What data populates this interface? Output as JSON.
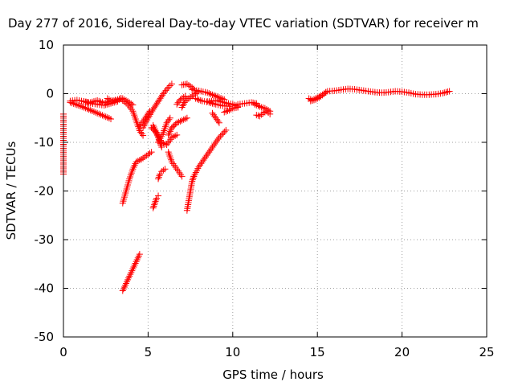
{
  "chart_data": {
    "type": "scatter",
    "title": "Day 277 of 2016, Sidereal Day-to-day VTEC variation (SDTVAR) for receiver m",
    "xlabel": "GPS time / hours",
    "ylabel": "SDTVAR / TECUs",
    "xlim": [
      0,
      25
    ],
    "ylim": [
      -50,
      10
    ],
    "xticks": [
      0,
      5,
      10,
      15,
      20,
      25
    ],
    "yticks": [
      10,
      0,
      -10,
      -20,
      -30,
      -40,
      -50
    ],
    "grid": true,
    "marker": "+",
    "color": "#ff0000",
    "tracks": [
      {
        "x": [
          0.4,
          0.8,
          1.2,
          1.6,
          2.0,
          2.4,
          2.8,
          3.2,
          3.4
        ],
        "y": [
          -1.5,
          -1.3,
          -1.6,
          -1.8,
          -1.4,
          -1.9,
          -1.5,
          -1.2,
          -0.9
        ]
      },
      {
        "x": [
          0.4,
          0.8,
          1.2,
          1.6,
          2.0,
          2.4,
          2.8
        ],
        "y": [
          -1.8,
          -2.3,
          -2.8,
          -3.4,
          -4.0,
          -4.6,
          -5.2
        ]
      },
      {
        "x": [
          1.2,
          1.6,
          2.0,
          2.4,
          2.8,
          3.2
        ],
        "y": [
          -1.6,
          -2.0,
          -2.2,
          -2.4,
          -2.0,
          -1.6
        ]
      },
      {
        "x": [
          2.6,
          2.9,
          3.2,
          3.5,
          3.8,
          4.1
        ],
        "y": [
          -1.0,
          -1.6,
          -1.3,
          -1.0,
          -1.6,
          -2.3
        ]
      },
      {
        "x": [
          3.5,
          3.8,
          4.1,
          4.3,
          4.5,
          4.7
        ],
        "y": [
          -1.4,
          -2.2,
          -3.6,
          -5.6,
          -7.6,
          -8.6
        ]
      },
      {
        "x": [
          4.7,
          5.0,
          5.3,
          5.6,
          5.9,
          6.2,
          6.4
        ],
        "y": [
          -7.0,
          -5.0,
          -3.2,
          -1.6,
          0.0,
          1.3,
          2.0
        ]
      },
      {
        "x": [
          4.5,
          4.8,
          5.1
        ],
        "y": [
          -6.6,
          -5.2,
          -3.6
        ]
      },
      {
        "x": [
          5.2,
          5.5,
          5.8,
          6.1,
          6.4,
          6.7
        ],
        "y": [
          -7.0,
          -8.0,
          -10.0,
          -10.5,
          -9.0,
          -8.5
        ]
      },
      {
        "x": [
          5.6,
          5.9,
          6.1,
          6.3
        ],
        "y": [
          -10.0,
          -8.0,
          -6.0,
          -5.0
        ]
      },
      {
        "x": [
          5.3,
          5.6,
          5.8
        ],
        "y": [
          -6.5,
          -9.0,
          -11.0
        ]
      },
      {
        "x": [
          6.2,
          6.4,
          6.7,
          7.0,
          7.3
        ],
        "y": [
          -8.5,
          -7.0,
          -6.0,
          -5.5,
          -5.0
        ]
      },
      {
        "x": [
          6.2,
          6.4,
          6.7,
          7.0
        ],
        "y": [
          -12.0,
          -14.0,
          -15.5,
          -17.0
        ]
      },
      {
        "x": [
          6.7,
          6.9,
          7.2
        ],
        "y": [
          -2.2,
          -1.2,
          -0.5
        ]
      },
      {
        "x": [
          7.0,
          7.2,
          7.6,
          8.0
        ],
        "y": [
          -2.8,
          -1.5,
          -0.5,
          0.5
        ]
      },
      {
        "x": [
          7.0,
          7.3,
          7.5,
          7.7
        ],
        "y": [
          1.8,
          2.0,
          1.5,
          1.0
        ]
      },
      {
        "x": [
          7.6,
          8.0,
          8.5,
          9.0,
          9.5
        ],
        "y": [
          0.8,
          0.6,
          0.2,
          -0.5,
          -1.2
        ]
      },
      {
        "x": [
          7.8,
          8.2,
          8.6,
          9.0,
          9.4,
          9.8
        ],
        "y": [
          -1.0,
          -1.5,
          -1.8,
          -2.2,
          -2.5,
          -2.6
        ]
      },
      {
        "x": [
          8.5,
          9.0,
          9.5,
          10.0,
          10.3
        ],
        "y": [
          -1.6,
          -1.4,
          -1.8,
          -2.2,
          -2.6
        ]
      },
      {
        "x": [
          9.5,
          9.8,
          10.0,
          10.3
        ],
        "y": [
          -3.8,
          -3.4,
          -3.0,
          -2.8
        ]
      },
      {
        "x": [
          8.8,
          9.0,
          9.2
        ],
        "y": [
          -4.0,
          -5.0,
          -6.0
        ]
      },
      {
        "x": [
          10.3,
          10.7,
          11.1,
          11.4
        ],
        "y": [
          -2.2,
          -2.0,
          -1.8,
          -2.0
        ]
      },
      {
        "x": [
          11.4,
          11.6,
          11.8,
          12.0,
          12.2
        ],
        "y": [
          -4.4,
          -4.6,
          -4.0,
          -3.6,
          -4.2
        ]
      },
      {
        "x": [
          11.3,
          11.5,
          11.7,
          11.9,
          12.2
        ],
        "y": [
          -2.2,
          -2.5,
          -2.8,
          -3.0,
          -3.6
        ]
      },
      {
        "x": [
          7.3,
          7.4,
          7.5,
          7.6,
          7.7
        ],
        "y": [
          -24.0,
          -22.0,
          -20.0,
          -18.0,
          -17.0
        ]
      },
      {
        "x": [
          7.7,
          8.0,
          8.4,
          8.8,
          9.2,
          9.6
        ],
        "y": [
          -17.0,
          -15.0,
          -13.0,
          -11.0,
          -9.0,
          -7.5
        ]
      },
      {
        "x": [
          3.5,
          3.7,
          3.9,
          4.1,
          4.3,
          4.6
        ],
        "y": [
          -22.5,
          -20.0,
          -17.5,
          -15.5,
          -14.0,
          -13.5
        ]
      },
      {
        "x": [
          4.6,
          4.8,
          5.0,
          5.2
        ],
        "y": [
          -13.5,
          -13.0,
          -12.5,
          -12.0
        ]
      },
      {
        "x": [
          5.3,
          5.4,
          5.5,
          5.6
        ],
        "y": [
          -23.5,
          -22.5,
          -21.5,
          -21.0
        ]
      },
      {
        "x": [
          5.6,
          5.7,
          5.8,
          6.0
        ],
        "y": [
          -17.5,
          -16.5,
          -16.0,
          -15.5
        ]
      },
      {
        "x": [
          3.5,
          3.7,
          3.9,
          4.1,
          4.3,
          4.5
        ],
        "y": [
          -40.5,
          -39.0,
          -37.5,
          -36.0,
          -34.5,
          -33.0
        ]
      },
      {
        "x": [
          14.5,
          14.7,
          15.0,
          15.3,
          15.6,
          16.0,
          16.4,
          16.8,
          17.2,
          17.6,
          18.0,
          18.4,
          18.8,
          19.2,
          19.6,
          20.0,
          20.4,
          20.8,
          21.2,
          21.6,
          22.0,
          22.4,
          22.8
        ],
        "y": [
          -1.0,
          -1.3,
          -0.8,
          -0.2,
          0.5,
          0.6,
          0.8,
          1.0,
          0.9,
          0.7,
          0.5,
          0.3,
          0.2,
          0.3,
          0.5,
          0.4,
          0.2,
          -0.1,
          -0.2,
          -0.2,
          -0.1,
          0.1,
          0.5
        ]
      },
      {
        "x": [
          14.6,
          14.9,
          15.2,
          15.5
        ],
        "y": [
          -1.5,
          -1.2,
          -0.6,
          0.3
        ]
      },
      {
        "x": [
          0.0,
          0.0,
          0.0
        ],
        "y": [
          -4.2,
          -10.0,
          -16.5
        ]
      }
    ]
  }
}
